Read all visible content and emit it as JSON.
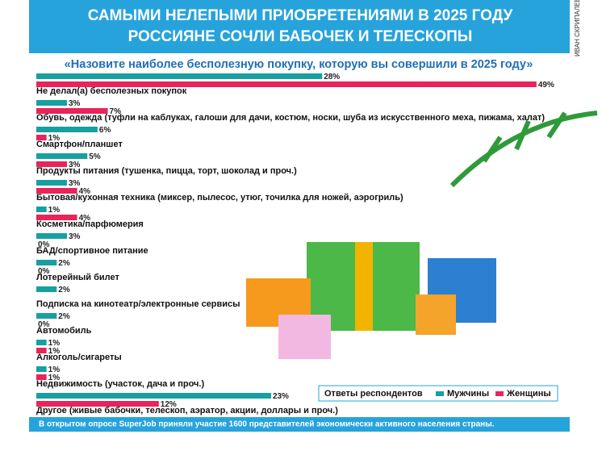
{
  "chart_data": {
    "type": "bar",
    "orientation": "horizontal",
    "title_lines": [
      "САМЫМИ НЕЛЕПЫМИ ПРИОБРЕТЕНИЯМИ В 2025 ГОДУ",
      "РОССИЯНЕ СОЧЛИ БАБОЧЕК И ТЕЛЕСКОПЫ"
    ],
    "subtitle": "«Назовите наиболее бесполезную покупку, которую вы совершили в 2025 году»",
    "credit": "ИВАН СКРИПАЛЕВ",
    "legend_title": "Ответы респондентов",
    "categories": [
      "Не делал(а) бесполезных покупок",
      "Обувь, одежда (туфли на каблуках, галоши для дачи, костюм, носки, шуба из искусственного меха, пижама, халат)",
      "Смартфон/планшет",
      "Продукты питания (тушенка, пицца, торт, шоколад и проч.)",
      "Бытовая/кухонная техника (миксер, пылесос, утюг, точилка для ножей, аэрогриль)",
      "Косметика/парфюмерия",
      "БАД/спортивное питание",
      "Лотерейный билет",
      "Подписка на кинотеатр/электронные сервисы",
      "Автомобиль",
      "Алкоголь/сигареты",
      "Недвижимость (участок, дача и проч.)",
      "Другое (живые бабочки, телескоп, аэратор, акции, доллары и проч.)"
    ],
    "series": [
      {
        "name": "Мужчины",
        "color": "#16a0a0",
        "values": [
          28,
          3,
          6,
          5,
          3,
          1,
          3,
          2,
          2,
          2,
          1,
          1,
          23
        ],
        "value_labels": [
          "28%",
          "3%",
          "6%",
          "5%",
          "3%",
          "1%",
          "3%",
          "2%",
          "2%",
          "2%",
          "1%",
          "1%",
          "23%"
        ]
      },
      {
        "name": "Женщины",
        "color": "#e8245a",
        "values": [
          49,
          7,
          1,
          3,
          4,
          4,
          0,
          0,
          null,
          0,
          1,
          1,
          12
        ],
        "value_labels": [
          "49%",
          "7%",
          "1%",
          "3%",
          "4%",
          "4%",
          "0%",
          "0%",
          null,
          "0%",
          "1%",
          "1%",
          "12%"
        ]
      }
    ],
    "footnote": "В открытом опросе SuperJob приняли участие 1600 представителей экономически активного населения страны."
  }
}
